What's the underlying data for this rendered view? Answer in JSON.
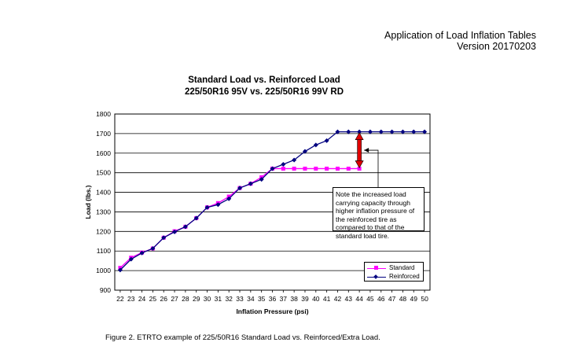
{
  "header": {
    "line1": "Application of Load Inflation Tables",
    "line2": "Version 20170203"
  },
  "chart_data": {
    "type": "line",
    "title": "Standard Load vs. Reinforced Load",
    "subtitle": "225/50R16 95V vs. 225/50R16 99V RD",
    "xlabel": "Inflation Pressure (psi)",
    "ylabel": "Load (lbs.)",
    "x": [
      22,
      23,
      24,
      25,
      26,
      27,
      28,
      29,
      30,
      31,
      32,
      33,
      34,
      35,
      36,
      37,
      38,
      39,
      40,
      41,
      42,
      43,
      44,
      45,
      46,
      47,
      48,
      49,
      50
    ],
    "ylim": [
      900,
      1800
    ],
    "yticks": [
      900,
      1000,
      1100,
      1200,
      1300,
      1400,
      1500,
      1600,
      1700,
      1800
    ],
    "grid": true,
    "legend_position": "bottom-right",
    "series": [
      {
        "name": "Standard",
        "color": "#ff00ff",
        "marker": "square",
        "x": [
          22,
          23,
          24,
          25,
          26,
          27,
          28,
          29,
          30,
          31,
          32,
          33,
          34,
          35,
          36,
          37,
          38,
          39,
          40,
          41,
          42,
          43,
          44
        ],
        "values": [
          1014,
          1066,
          1092,
          1113,
          1168,
          1201,
          1224,
          1268,
          1323,
          1345,
          1378,
          1422,
          1444,
          1477,
          1521,
          1521,
          1521,
          1521,
          1521,
          1521,
          1521,
          1521,
          1521
        ]
      },
      {
        "name": "Reinforced",
        "color": "#000080",
        "marker": "diamond",
        "x": [
          22,
          23,
          24,
          25,
          26,
          27,
          28,
          29,
          30,
          31,
          32,
          33,
          34,
          35,
          36,
          37,
          38,
          39,
          40,
          41,
          42,
          43,
          44,
          45,
          46,
          47,
          48,
          49,
          50
        ],
        "values": [
          1003,
          1058,
          1090,
          1113,
          1168,
          1198,
          1224,
          1268,
          1323,
          1337,
          1367,
          1422,
          1444,
          1466,
          1521,
          1543,
          1565,
          1609,
          1642,
          1664,
          1709,
          1709,
          1709,
          1709,
          1709,
          1709,
          1709,
          1709,
          1709
        ]
      }
    ],
    "annotation": "Note the increased load carrying capacity through higher inflation pressure of the reinforced tire as compared to that of the standard load tire."
  },
  "caption": "Figure 2. ETRTO example of 225/50R16 Standard Load vs. Reinforced/Extra Load."
}
